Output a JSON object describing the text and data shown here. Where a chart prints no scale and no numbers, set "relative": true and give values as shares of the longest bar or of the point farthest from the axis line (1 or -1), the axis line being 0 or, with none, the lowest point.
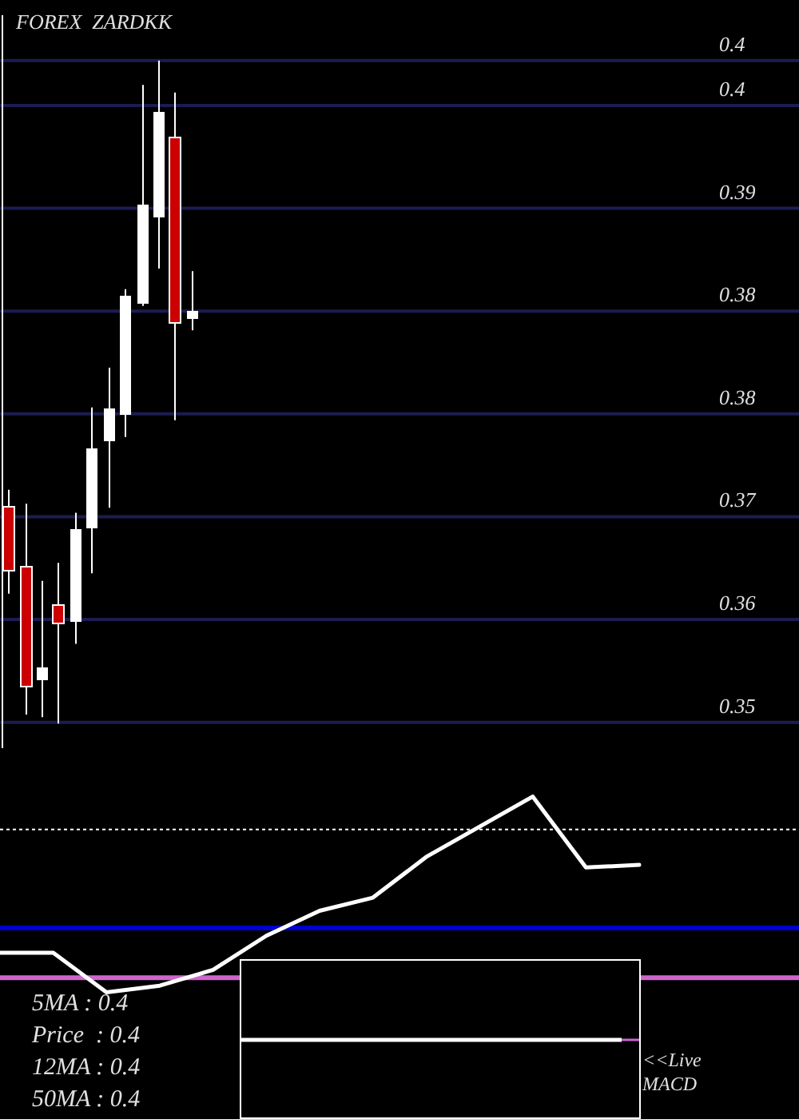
{
  "chart_data": [
    {
      "type": "candlestick",
      "title": "FOREX  ZARDKK",
      "categories": [
        null,
        null,
        null,
        null,
        null,
        null,
        null,
        null,
        null,
        null,
        null,
        null,
        null,
        null,
        null,
        null,
        null,
        null,
        null,
        null,
        null,
        null,
        null,
        null,
        null,
        null,
        null,
        null,
        null,
        null,
        null,
        null,
        null,
        null,
        null,
        null,
        null,
        null,
        null,
        null,
        null,
        null,
        null,
        null,
        null,
        null,
        null,
        null
      ],
      "ohlc": [
        [
          0.3688,
          0.3701,
          0.362,
          0.3638
        ],
        [
          0.3641,
          0.369,
          0.3526,
          0.3548
        ],
        [
          0.3553,
          0.363,
          0.3524,
          0.3563
        ],
        [
          0.3611,
          0.3644,
          0.3519,
          0.3597
        ],
        [
          0.3598,
          0.3683,
          0.3581,
          0.367
        ],
        [
          0.3671,
          0.3765,
          0.3636,
          0.3733
        ],
        [
          0.3739,
          0.3796,
          0.3687,
          0.3764
        ],
        [
          0.3759,
          0.3857,
          0.3742,
          0.3852
        ],
        [
          0.3846,
          0.4016,
          0.3844,
          0.3923
        ],
        [
          0.3913,
          0.4035,
          0.3873,
          0.3995
        ],
        [
          0.3975,
          0.401,
          0.3755,
          0.3831
        ],
        [
          0.3834,
          0.3871,
          0.3825,
          0.384
        ],
        null,
        null,
        null,
        null,
        null,
        null,
        null,
        null,
        null,
        null,
        null,
        null,
        null,
        null,
        null,
        null,
        null,
        null,
        null,
        null,
        null,
        null,
        null,
        null,
        null,
        null,
        null,
        null,
        null,
        null,
        null,
        null,
        null,
        null,
        null,
        null
      ],
      "colors": [
        "#cc0000",
        "#cc0000",
        "#ffffff",
        "#cc0000",
        "#ffffff",
        "#ffffff",
        "#ffffff",
        "#ffffff",
        "#ffffff",
        "#ffffff",
        "#cc0000",
        "#ffffff",
        null,
        null,
        null,
        null,
        null,
        null,
        null,
        null,
        null,
        null,
        null,
        null,
        null,
        null,
        null,
        null,
        null,
        null,
        null,
        null,
        null,
        null,
        null,
        null,
        null,
        null,
        null,
        null,
        null,
        null,
        null,
        null,
        null,
        null,
        null,
        null
      ],
      "ylim": [
        0.35,
        0.407
      ],
      "yticks": [
        {
          "value": 0.4035,
          "label": "0.4"
        },
        {
          "value": 0.4,
          "label": "0.4"
        },
        {
          "value": 0.392,
          "label": "0.39"
        },
        {
          "value": 0.384,
          "label": "0.38"
        },
        {
          "value": 0.376,
          "label": "0.38"
        },
        {
          "value": 0.368,
          "label": "0.37"
        },
        {
          "value": 0.36,
          "label": "0.36"
        },
        {
          "value": 0.352,
          "label": "0.35"
        }
      ],
      "grid": true,
      "tick_labels": "y"
    },
    {
      "type": "line",
      "relative": true,
      "categories": [
        null,
        null,
        null,
        null,
        null,
        null,
        null,
        null,
        null,
        null,
        null,
        null,
        null
      ],
      "series": [
        {
          "color": "#ffffff",
          "values": [
            -0.19,
            -0.19,
            -0.49,
            -0.44,
            -0.32,
            -0.06,
            0.13,
            0.23,
            0.54,
            0.77,
            1,
            0.46,
            0.48
          ]
        }
      ],
      "ref_lines": [
        {
          "axis": "y",
          "value": 0.75,
          "color": "#ffffff",
          "line_style": "dotted"
        },
        {
          "axis": "y",
          "value": 0,
          "color": "#0000cc"
        },
        {
          "axis": "y",
          "value": -0.38,
          "color": "#cc66cc"
        }
      ],
      "annotations": [
        "5MA : 0.4",
        "Price  : 0.4",
        "12MA : 0.4",
        "50MA : 0.4",
        "<<Live MACD"
      ]
    }
  ]
}
